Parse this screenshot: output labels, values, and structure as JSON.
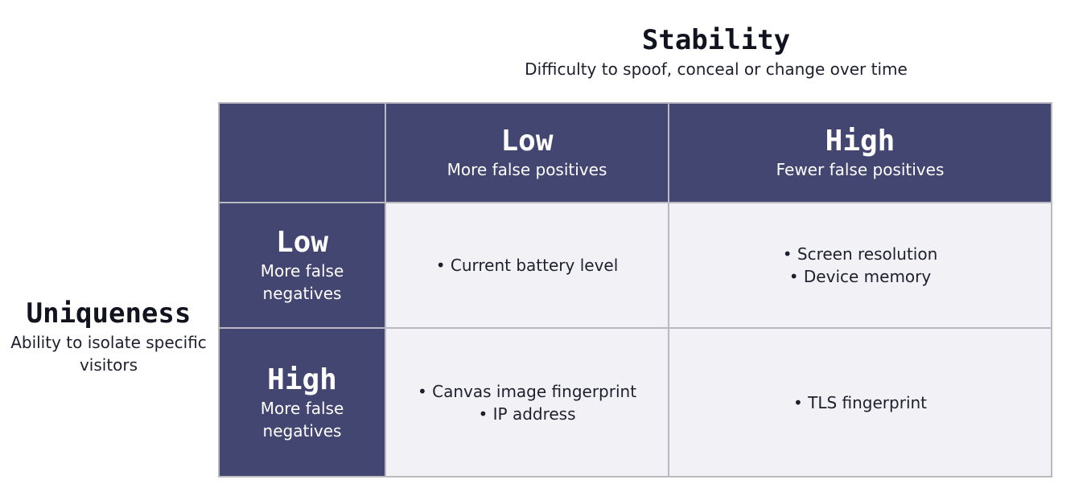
{
  "stability": {
    "title": "Stability",
    "subtitle": "Difficulty to spoof, conceal or change over time"
  },
  "uniqueness": {
    "title": "Uniqueness",
    "subtitle": "Ability to isolate specific visitors"
  },
  "columns": [
    {
      "level": "Low",
      "desc": "More false positives"
    },
    {
      "level": "High",
      "desc": "Fewer false positives"
    }
  ],
  "rows": [
    {
      "level": "Low",
      "desc": "More false negatives",
      "cells": [
        [
          "• Current battery level"
        ],
        [
          "• Screen resolution",
          "• Device memory"
        ]
      ]
    },
    {
      "level": "High",
      "desc": "More false negatives",
      "cells": [
        [
          "• Canvas image fingerprint",
          "• IP address"
        ],
        [
          "• TLS fingerprint"
        ]
      ]
    }
  ],
  "colors": {
    "header_fill": "#424670",
    "body_fill": "#f2f2f6",
    "border": "#b9b9c1"
  }
}
